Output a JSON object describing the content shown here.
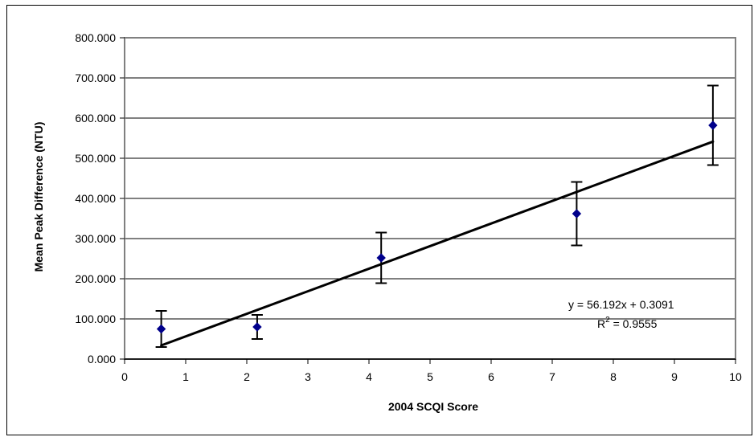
{
  "chart_data": {
    "type": "scatter",
    "title": "",
    "xlabel": "2004 SCQI Score",
    "ylabel": "Mean Peak Difference (NTU)",
    "xlim": [
      0,
      10
    ],
    "ylim": [
      0,
      800
    ],
    "x_ticks": [
      "0",
      "1",
      "2",
      "3",
      "4",
      "5",
      "6",
      "7",
      "8",
      "9",
      "10"
    ],
    "y_ticks": [
      "0.000",
      "100.000",
      "200.000",
      "300.000",
      "400.000",
      "500.000",
      "600.000",
      "700.000",
      "800.000"
    ],
    "grid": "horizontal",
    "legend": "none",
    "series": [
      {
        "marker": "diamond",
        "color": "#00008b",
        "points": [
          {
            "x": 0.6,
            "y": 75,
            "err_low": 45,
            "err_high": 45
          },
          {
            "x": 2.17,
            "y": 80,
            "err_low": 30,
            "err_high": 30
          },
          {
            "x": 4.2,
            "y": 252,
            "err_low": 63,
            "err_high": 63
          },
          {
            "x": 7.4,
            "y": 362,
            "err_low": 79,
            "err_high": 79
          },
          {
            "x": 9.63,
            "y": 582,
            "err_low": 99,
            "err_high": 99
          }
        ]
      }
    ],
    "trendline": {
      "type": "linear",
      "slope": 56.192,
      "intercept": 0.3091,
      "x_range": [
        0.6,
        9.63
      ],
      "color": "#000000",
      "equation_label": "y = 56.192x + 0.3091",
      "r2_prefix": "R",
      "r2_superscript": "2",
      "r2_value": " = 0.9555"
    },
    "colors": {
      "gridline": "#000000",
      "plot_border": "#808080",
      "error_bar": "#000000"
    }
  }
}
